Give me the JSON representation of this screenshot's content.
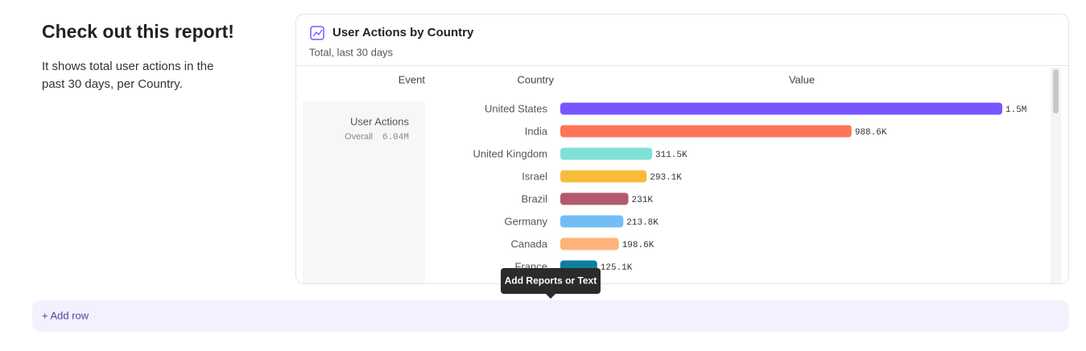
{
  "sidebar": {
    "title": "Check out this report!",
    "description": "It shows total user actions in the past 30 days, per Country."
  },
  "report": {
    "title": "User Actions by Country",
    "subtitle": "Total, last 30 days",
    "columns": [
      "Event",
      "Country",
      "Value"
    ],
    "event": {
      "name": "User Actions",
      "overall_label": "Overall",
      "overall_value": "6.04M"
    },
    "chart_data": {
      "type": "bar",
      "orientation": "horizontal",
      "categories": [
        "United States",
        "India",
        "United Kingdom",
        "Israel",
        "Brazil",
        "Germany",
        "Canada",
        "France"
      ],
      "values": [
        1500000,
        988600,
        311500,
        293100,
        231000,
        213800,
        198600,
        125100
      ],
      "value_labels": [
        "1.5M",
        "988.6K",
        "311.5K",
        "293.1K",
        "231K",
        "213.8K",
        "198.6K",
        "125.1K"
      ],
      "colors": [
        "#7856ff",
        "#ff7557",
        "#80e1d9",
        "#f8bc3b",
        "#b2596e",
        "#72bef4",
        "#ffb27a",
        "#0f7ea0"
      ]
    }
  },
  "tooltip": "Add Reports or Text",
  "add_row": "+ Add row"
}
